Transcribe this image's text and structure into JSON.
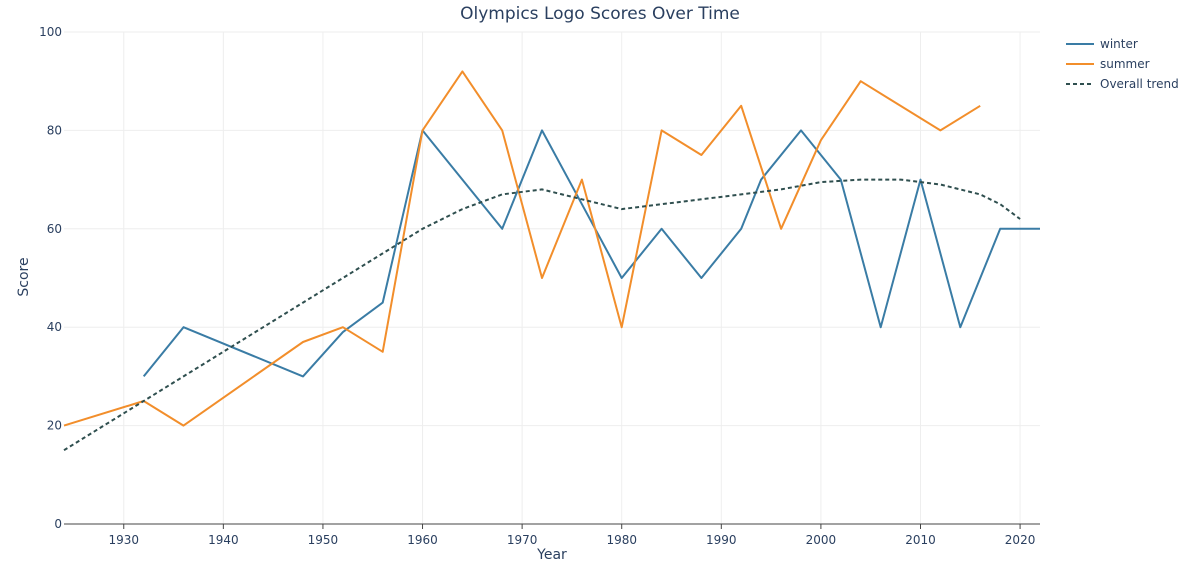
{
  "chart_data": {
    "type": "line",
    "title": "Olympics Logo Scores Over Time",
    "xlabel": "Year",
    "ylabel": "Score",
    "xlim": [
      1924,
      2022
    ],
    "ylim": [
      0,
      100
    ],
    "xticks": [
      1930,
      1940,
      1950,
      1960,
      1970,
      1980,
      1990,
      2000,
      2010,
      2020
    ],
    "yticks": [
      0,
      20,
      40,
      60,
      80,
      100
    ],
    "grid": true,
    "legend_position": "top-right",
    "series": [
      {
        "name": "winter",
        "color": "#3a7ca5",
        "dash": "solid",
        "x": [
          1932,
          1936,
          1948,
          1952,
          1956,
          1960,
          1968,
          1972,
          1976,
          1980,
          1984,
          1988,
          1992,
          1994,
          1998,
          2002,
          2006,
          2010,
          2014,
          2018,
          2022
        ],
        "y": [
          30,
          40,
          30,
          39,
          45,
          80,
          60,
          80,
          65,
          50,
          60,
          50,
          60,
          70,
          80,
          70,
          40,
          70,
          40,
          60,
          60
        ]
      },
      {
        "name": "summer",
        "color": "#f28e2b",
        "dash": "solid",
        "x": [
          1924,
          1932,
          1936,
          1948,
          1952,
          1956,
          1960,
          1964,
          1968,
          1972,
          1976,
          1980,
          1984,
          1988,
          1992,
          1996,
          2000,
          2004,
          2012,
          2016
        ],
        "y": [
          20,
          25,
          20,
          37,
          40,
          35,
          80,
          92,
          80,
          50,
          70,
          40,
          80,
          75,
          85,
          60,
          78,
          90,
          80,
          85
        ]
      },
      {
        "name": "Overall trend",
        "color": "#2f4f4f",
        "dash": "dashed",
        "x": [
          1924,
          1928,
          1932,
          1936,
          1940,
          1944,
          1948,
          1952,
          1956,
          1960,
          1964,
          1968,
          1972,
          1976,
          1980,
          1984,
          1988,
          1992,
          1996,
          2000,
          2004,
          2008,
          2012,
          2016,
          2018,
          2020
        ],
        "y": [
          15,
          20,
          25,
          30,
          35,
          40,
          45,
          50,
          55,
          60,
          64,
          67,
          68,
          66,
          64,
          65,
          66,
          67,
          68,
          69.5,
          70,
          70,
          69,
          67,
          65,
          62
        ]
      }
    ]
  }
}
